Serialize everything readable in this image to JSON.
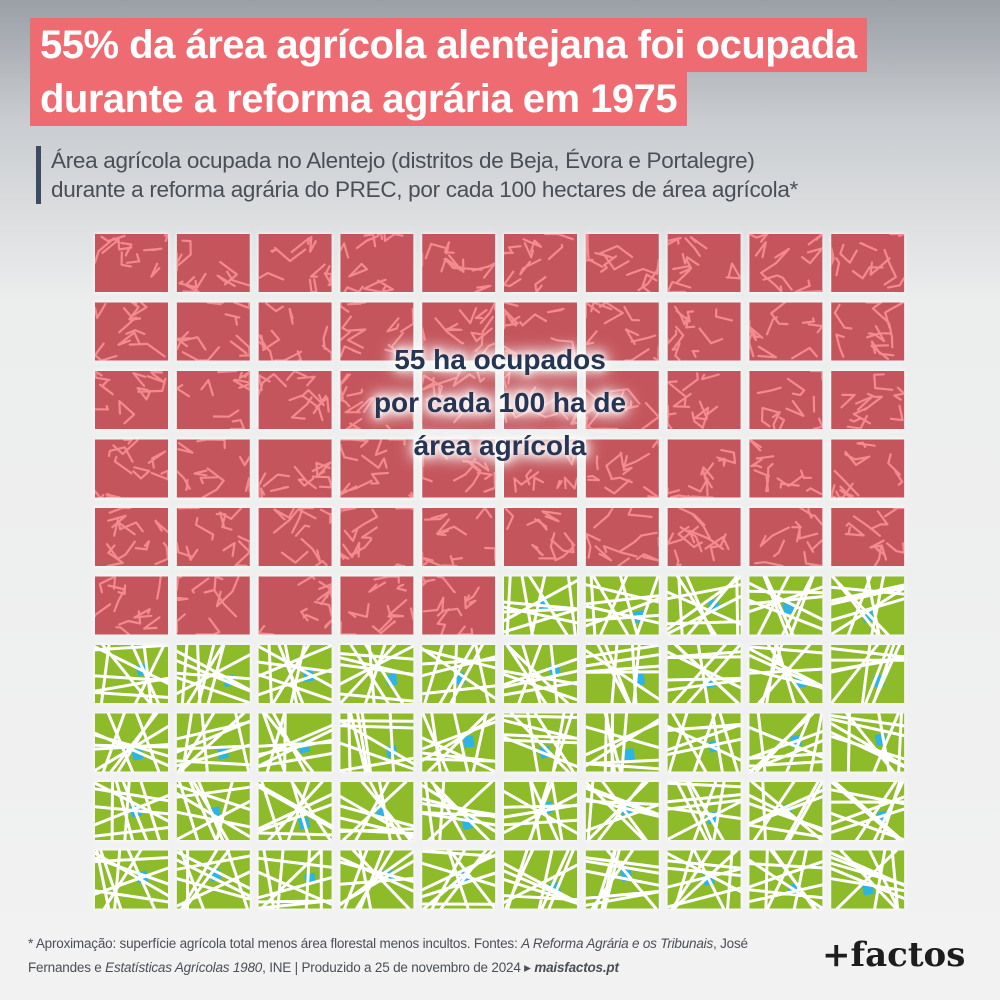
{
  "title": {
    "line1": "55% da área agrícola alentejana foi ocupada",
    "line2": "durante a reforma agrária em 1975"
  },
  "subtitle": {
    "line1": "Área agrícola ocupada no Alentejo (distritos de Beja, Évora e Portalegre)",
    "line2": "durante a reforma agrária do PREC, por cada 100 hectares de área agrícola*"
  },
  "chart_data": {
    "type": "waffle",
    "total_cells": 100,
    "rows": 10,
    "columns": 10,
    "unit": "ha",
    "series": [
      {
        "value": 55,
        "color": "#c5545c",
        "pattern_color": "#f28a8e",
        "pattern": "cracked-earth"
      },
      {
        "value": 45,
        "color": "#8dbb2c",
        "pattern_color": "#ffffff",
        "pattern": "field-plots"
      }
    ],
    "annotation": {
      "line1": "55 ha ocupados",
      "line2": "por cada 100 ha de",
      "line3": "área agrícola"
    }
  },
  "footer": {
    "line1_a": "* Aproximação: superfície agrícola total menos área florestal menos incultos. Fontes: ",
    "line1_b": "A Reforma Agrária e os Tribunais",
    "line1_c": ", José",
    "line2_a": "Fernandes e ",
    "line2_b": "Estatísticas Agrícolas 1980",
    "line2_c": ", INE | Produzido a 25 de novembro de 2024 ▸ ",
    "line2_d": "maisfactos.pt"
  },
  "logo": {
    "text": "+factos"
  },
  "colors": {
    "title_bg": "#ef6b72",
    "title_text": "#ffffff",
    "subtitle_bar": "#3c4a62",
    "annotation_text": "#253553",
    "water": "#2cb4e6"
  }
}
